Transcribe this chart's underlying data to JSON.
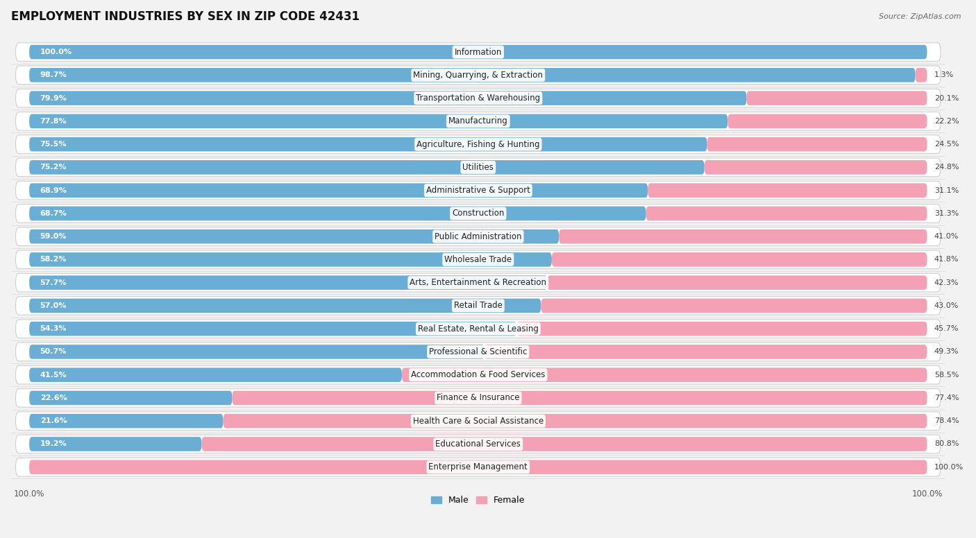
{
  "title": "EMPLOYMENT INDUSTRIES BY SEX IN ZIP CODE 42431",
  "source": "Source: ZipAtlas.com",
  "categories": [
    "Information",
    "Mining, Quarrying, & Extraction",
    "Transportation & Warehousing",
    "Manufacturing",
    "Agriculture, Fishing & Hunting",
    "Utilities",
    "Administrative & Support",
    "Construction",
    "Public Administration",
    "Wholesale Trade",
    "Arts, Entertainment & Recreation",
    "Retail Trade",
    "Real Estate, Rental & Leasing",
    "Professional & Scientific",
    "Accommodation & Food Services",
    "Finance & Insurance",
    "Health Care & Social Assistance",
    "Educational Services",
    "Enterprise Management"
  ],
  "male": [
    100.0,
    98.7,
    79.9,
    77.8,
    75.5,
    75.2,
    68.9,
    68.7,
    59.0,
    58.2,
    57.7,
    57.0,
    54.3,
    50.7,
    41.5,
    22.6,
    21.6,
    19.2,
    0.0
  ],
  "female": [
    0.0,
    1.3,
    20.1,
    22.2,
    24.5,
    24.8,
    31.1,
    31.3,
    41.0,
    41.8,
    42.3,
    43.0,
    45.7,
    49.3,
    58.5,
    77.4,
    78.4,
    80.8,
    100.0
  ],
  "male_color": "#6aaed6",
  "female_color": "#f4a0b5",
  "bg_color": "#f2f2f2",
  "bar_bg_color": "#e8e8e8",
  "row_bg_color": "#ffffff",
  "title_fontsize": 12,
  "label_fontsize": 8.5,
  "pct_fontsize": 8.0,
  "bar_height": 0.62,
  "figsize": [
    14.06,
    7.76
  ]
}
